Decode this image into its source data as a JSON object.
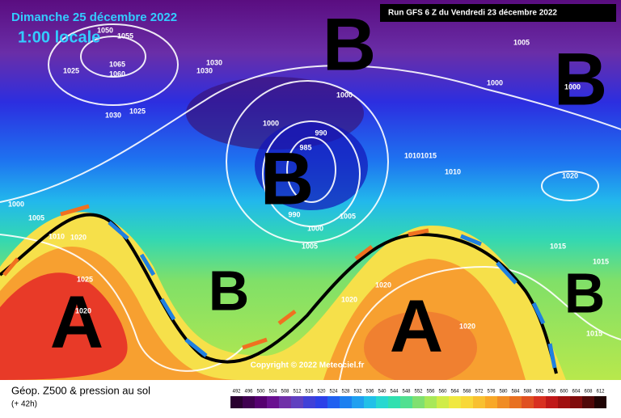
{
  "header": {
    "date": "Dimanche 25 décembre 2022",
    "time": "1:00 locale",
    "run": "Run GFS 6 Z du Vendredi 23 décembre 2022"
  },
  "systems": [
    "B",
    "B",
    "B",
    "B",
    "B",
    "A",
    "A"
  ],
  "isobars": [
    1050,
    1055,
    1065,
    1060,
    1030,
    1030,
    1025,
    1030,
    1025,
    1005,
    1000,
    1000,
    1000,
    1000,
    990,
    985,
    990,
    1000,
    1005,
    1005,
    1010,
    1015,
    1010,
    1020,
    1000,
    1005,
    1010,
    1020,
    1025,
    1020,
    1020,
    1020,
    1020,
    1015,
    1015,
    1015
  ],
  "footer": {
    "title": "Géop. Z500 & pression au sol",
    "lead": "(+ 42h)",
    "copyright": "Copyright © 2022 Meteociel.fr"
  },
  "scale": [
    492,
    496,
    500,
    504,
    508,
    512,
    516,
    520,
    524,
    528,
    532,
    536,
    540,
    544,
    548,
    552,
    556,
    560,
    564,
    568,
    572,
    576,
    580,
    584,
    588,
    592,
    596,
    600,
    604,
    608,
    612
  ]
}
